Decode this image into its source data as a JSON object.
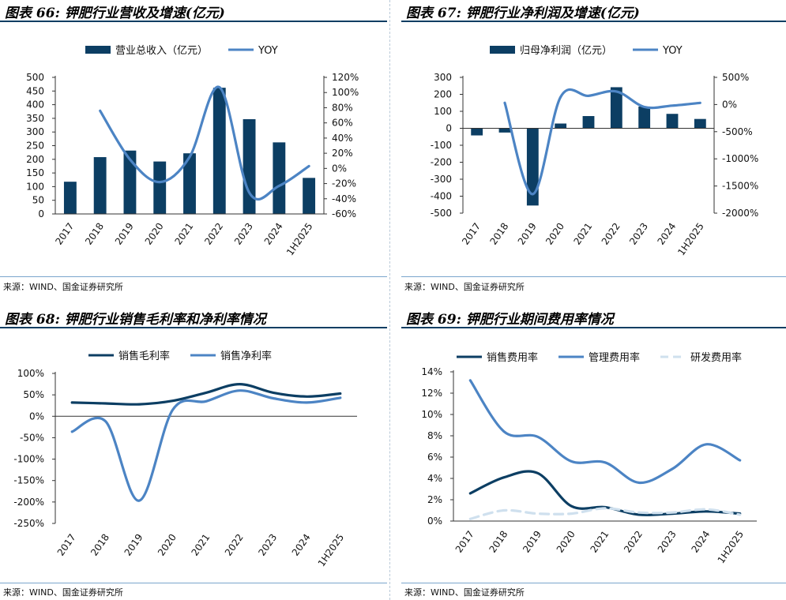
{
  "colors": {
    "dark": "#0c3e63",
    "mid": "#4c84c4",
    "light": "#cfe0ee",
    "title_rule": "#0c3e63",
    "source_rule": "#7aa6cc"
  },
  "charts": [
    {
      "title": "图表 66: 钾肥行业营收及增速(亿元)",
      "source": "来源：WIND、国金证券研究所",
      "chart_data": {
        "type": "bar",
        "categories": [
          "2017",
          "2018",
          "2019",
          "2020",
          "2021",
          "2022",
          "2023",
          "2024",
          "1H2025"
        ],
        "left_ticks": [
          "500",
          "450",
          "400",
          "350",
          "300",
          "250",
          "200",
          "150",
          "100",
          "50",
          "0"
        ],
        "right_ticks": [
          "120%",
          "100%",
          "80%",
          "60%",
          "40%",
          "20%",
          "0%",
          "-20%",
          "-40%",
          "-60%"
        ],
        "ylim_left": [
          0,
          500
        ],
        "ylim_right": [
          -60,
          120
        ],
        "series": [
          {
            "name": "营业总收入（亿元）",
            "type": "bar",
            "axis": "left",
            "values": [
              118,
              208,
              232,
              192,
              222,
              462,
              347,
              262,
              132
            ]
          },
          {
            "name": "YOY",
            "type": "line",
            "axis": "right",
            "values": [
              null,
              76,
              12,
              -18,
              15,
              107,
              -32,
              -23,
              3
            ]
          }
        ]
      }
    },
    {
      "title": "图表 67: 钾肥行业净利润及增速(亿元)",
      "source": "来源：WIND、国金证券研究所",
      "chart_data": {
        "type": "bar",
        "categories": [
          "2017",
          "2018",
          "2019",
          "2020",
          "2021",
          "2022",
          "2023",
          "2024",
          "1H2025"
        ],
        "left_ticks": [
          "300",
          "200",
          "100",
          "0",
          "-100",
          "-200",
          "-300",
          "-400",
          "-500"
        ],
        "right_ticks": [
          "500%",
          "0%",
          "-500%",
          "-1000%",
          "-1500%",
          "-2000%"
        ],
        "ylim_left": [
          -500,
          300
        ],
        "ylim_right": [
          -2000,
          500
        ],
        "series": [
          {
            "name": "归母净利润（亿元）",
            "type": "bar",
            "axis": "left",
            "values": [
              -42,
              -25,
              -455,
              28,
              72,
              242,
              128,
              85,
              55
            ]
          },
          {
            "name": "YOY",
            "type": "line",
            "axis": "right",
            "values": [
              null,
              30,
              -1650,
              140,
              160,
              240,
              -45,
              -20,
              30
            ]
          }
        ]
      }
    },
    {
      "title": "图表 68: 钾肥行业销售毛利率和净利率情况",
      "source": "来源：WIND、国金证券研究所",
      "chart_data": {
        "type": "line",
        "categories": [
          "2017",
          "2018",
          "2019",
          "2020",
          "2021",
          "2022",
          "2023",
          "2024",
          "1H2025"
        ],
        "left_ticks": [
          "100%",
          "50%",
          "0%",
          "-50%",
          "-100%",
          "-150%",
          "-200%",
          "-250%"
        ],
        "ylim": [
          -250,
          100
        ],
        "series": [
          {
            "name": "销售毛利率",
            "values": [
              32,
              30,
              28,
              36,
              55,
              75,
              55,
              46,
              53
            ]
          },
          {
            "name": "销售净利率",
            "values": [
              -36,
              -12,
              -197,
              15,
              35,
              60,
              42,
              32,
              43
            ]
          }
        ]
      }
    },
    {
      "title": "图表 69: 钾肥行业期间费用率情况",
      "source": "来源：WIND、国金证券研究所",
      "chart_data": {
        "type": "line",
        "categories": [
          "2017",
          "2018",
          "2019",
          "2020",
          "2021",
          "2022",
          "2023",
          "2024",
          "1H2025"
        ],
        "left_ticks": [
          "14%",
          "12%",
          "10%",
          "8%",
          "6%",
          "4%",
          "2%",
          "0%"
        ],
        "ylim": [
          0,
          14
        ],
        "series": [
          {
            "name": "销售费用率",
            "values": [
              2.6,
              4.1,
              4.5,
              1.4,
              1.3,
              0.6,
              0.7,
              0.9,
              0.7
            ]
          },
          {
            "name": "管理费用率",
            "values": [
              13.2,
              8.4,
              7.9,
              5.6,
              5.5,
              3.6,
              4.9,
              7.2,
              5.7
            ]
          },
          {
            "name": "研发费用率",
            "values": [
              0.2,
              1.0,
              0.7,
              0.7,
              1.2,
              0.8,
              0.8,
              1.1,
              0.6
            ]
          }
        ]
      }
    }
  ]
}
